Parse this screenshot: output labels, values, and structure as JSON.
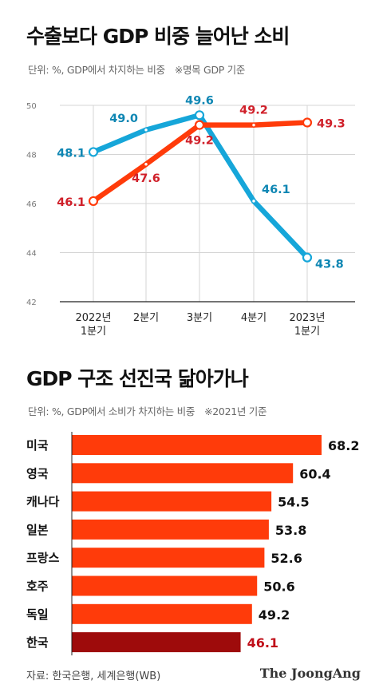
{
  "chart1": {
    "title": "수출보다 GDP 비중 늘어난 소비",
    "unit_note": "단위: %, GDP에서 차지하는 비중",
    "ref_note": "※명목 GDP 기준"
  },
  "chart2": {
    "title": "GDP 구조 선진국 닮아가나",
    "unit_note": "단위: %, GDP에서 소비가 차지하는 비중",
    "ref_note": "※2021년 기준"
  },
  "footer": {
    "source": "자료: 한국은행, 세계은행(WB)",
    "logo": "The JoongAng"
  },
  "colors": {
    "blue": "#16A6D9",
    "red": "#FF3B0A",
    "blue_text": "#0E86B3",
    "red_text": "#D0202A",
    "korea_bar": "#9E0B0B",
    "korea_text": "#C0101A"
  },
  "chart_data": [
    {
      "type": "line",
      "categories": [
        [
          "2022년",
          "1분기"
        ],
        [
          "2분기"
        ],
        [
          "3분기"
        ],
        [
          "4분기"
        ],
        [
          "2023년",
          "1분기"
        ]
      ],
      "series": [
        {
          "color": "#16A6D9",
          "values": [
            48.1,
            49.0,
            49.6,
            46.1,
            43.8
          ]
        },
        {
          "color": "#FF3B0A",
          "values": [
            46.1,
            47.6,
            49.2,
            49.2,
            49.3
          ]
        }
      ],
      "ylim": [
        42,
        50
      ],
      "yticks": [
        42,
        44,
        46,
        48,
        50
      ],
      "grid": true
    },
    {
      "type": "bar",
      "orientation": "horizontal",
      "categories": [
        "미국",
        "영국",
        "캐나다",
        "일본",
        "프랑스",
        "호주",
        "독일",
        "한국"
      ],
      "values": [
        68.2,
        60.4,
        54.5,
        53.8,
        52.6,
        50.6,
        49.2,
        46.1
      ],
      "highlight": "한국"
    }
  ]
}
